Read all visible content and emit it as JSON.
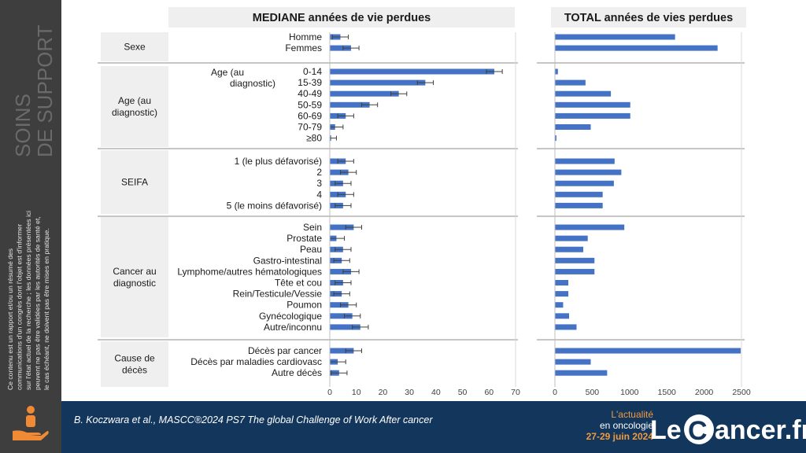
{
  "sidebar": {
    "title_line1": "SOINS",
    "title_line2": "DE SUPPORT",
    "disclaimer_lines": [
      "Ce contenu est un rapport et/ou un résumé des",
      "communications d'un congrès dont l'objet est d'informer",
      "sur l'état actuel de la recherche ; les données présentées ici",
      "peuvent ne pas être validées par les autorités de santé et,",
      "le cas échéant, ne doivent pas être mises en pratique."
    ],
    "icon": "hand-person-icon"
  },
  "footer": {
    "citation": "B. Koczwara et al., MASCC®2024 PS7 The global Challenge of Work After cancer",
    "event_line1": "L'actualité",
    "event_line2": "en oncologie",
    "event_dates": "27-29 juin 2024",
    "logo_text_le": "Le",
    "logo_text_c": "C",
    "logo_text_rest": "ancer.fr"
  },
  "chart_data": {
    "type": "bar",
    "orientation": "horizontal",
    "panels": [
      {
        "title": "MEDIANE années de vie perdues",
        "xlim": [
          0,
          70
        ],
        "xticks": [
          "0",
          "10",
          "20",
          "30",
          "40",
          "50",
          "60",
          "70"
        ],
        "error_bars": true
      },
      {
        "title": "TOTAL années de vies perdues",
        "xlim": [
          0,
          2500
        ],
        "xticks": [
          "0",
          "500",
          "1000",
          "1500",
          "2000",
          "2500"
        ],
        "error_bars": false
      }
    ],
    "groups": [
      {
        "label": "Sexe",
        "rows": [
          {
            "label": "Homme",
            "median": 4,
            "err": 3,
            "total": 1610
          },
          {
            "label": "Femmes",
            "median": 8,
            "err": 3,
            "total": 2180
          }
        ]
      },
      {
        "label": "Age (au diagnostic)",
        "inner_label": "Age (au diagnostic)",
        "rows": [
          {
            "label": "0-14",
            "median": 62,
            "err": 3,
            "total": 40
          },
          {
            "label": "15-39",
            "median": 36,
            "err": 3,
            "total": 410
          },
          {
            "label": "40-49",
            "median": 26,
            "err": 3,
            "total": 750
          },
          {
            "label": "50-59",
            "median": 15,
            "err": 3,
            "total": 1010
          },
          {
            "label": "60-69",
            "median": 6,
            "err": 3,
            "total": 1010
          },
          {
            "label": "70-79",
            "median": 2,
            "err": 3,
            "total": 480
          },
          {
            "label": "≥80",
            "median": 0.5,
            "err": 2,
            "total": 20
          }
        ]
      },
      {
        "label": "SEIFA",
        "rows": [
          {
            "label": "1 (le plus défavorisé)",
            "median": 6,
            "err": 3,
            "total": 800
          },
          {
            "label": "2",
            "median": 7,
            "err": 3,
            "total": 890
          },
          {
            "label": "3",
            "median": 5,
            "err": 3,
            "total": 790
          },
          {
            "label": "4",
            "median": 6,
            "err": 3,
            "total": 640
          },
          {
            "label": "5 (le moins défavorisé)",
            "median": 5,
            "err": 3,
            "total": 640
          }
        ]
      },
      {
        "label": "Cancer au diagnostic",
        "rows": [
          {
            "label": "Sein",
            "median": 9,
            "err": 3,
            "total": 930
          },
          {
            "label": "Prostate",
            "median": 2.5,
            "err": 3,
            "total": 440
          },
          {
            "label": "Peau",
            "median": 5,
            "err": 3,
            "total": 380
          },
          {
            "label": "Gastro-intestinal",
            "median": 4.5,
            "err": 3,
            "total": 530
          },
          {
            "label": "Lymphome/autres hématologiques",
            "median": 8,
            "err": 3,
            "total": 530
          },
          {
            "label": "Tête et cou",
            "median": 5,
            "err": 3,
            "total": 180
          },
          {
            "label": "Rein/Testicule/Vessie",
            "median": 4.5,
            "err": 3,
            "total": 180
          },
          {
            "label": "Poumon",
            "median": 7,
            "err": 3,
            "total": 110
          },
          {
            "label": "Gynécologique",
            "median": 8.5,
            "err": 3,
            "total": 190
          },
          {
            "label": "Autre/inconnu",
            "median": 11.5,
            "err": 3,
            "total": 290
          }
        ]
      },
      {
        "label": "Cause de décès",
        "rows": [
          {
            "label": "Décès par cancer",
            "median": 9,
            "err": 3,
            "total": 2490
          },
          {
            "label": "Décès par maladies cardiovasc",
            "median": 3,
            "err": 3,
            "total": 480
          },
          {
            "label": "Autre décès",
            "median": 3.5,
            "err": 3,
            "total": 700
          }
        ]
      }
    ],
    "colors": {
      "bar": "#4472c4",
      "bar_dark": "#2f528f",
      "header_bg": "#efefef",
      "group_bg": "#efefef",
      "divider": "#8c8c8c"
    }
  }
}
